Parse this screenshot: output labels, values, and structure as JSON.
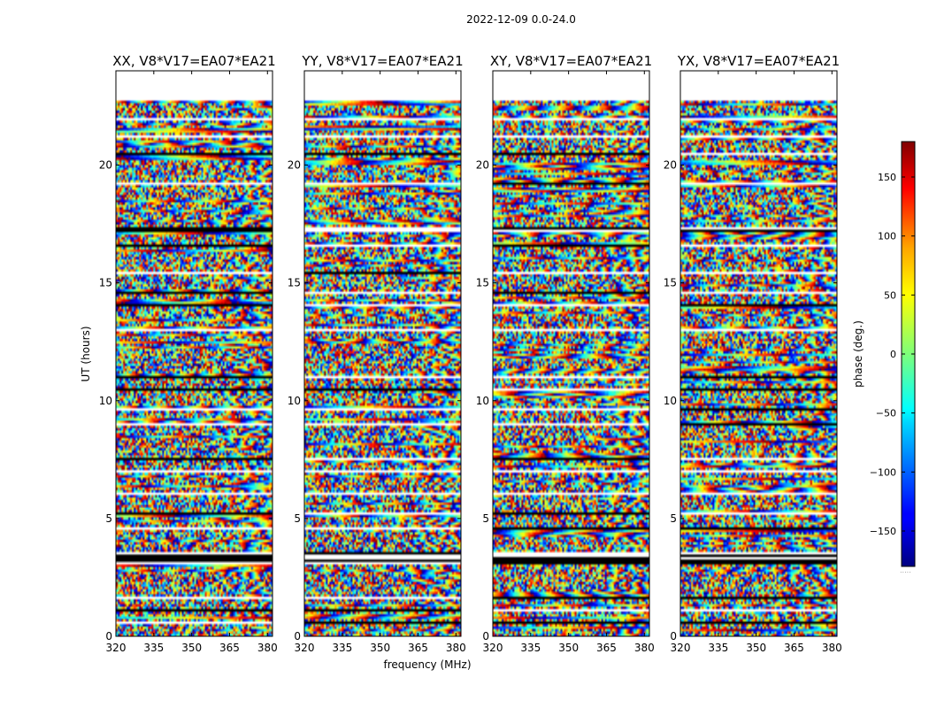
{
  "chart_data": {
    "type": "heatmap",
    "suptitle": "2022-12-09 0.0-24.0",
    "xlabel": "frequency (MHz)",
    "ylabel": "UT (hours)",
    "xlim": [
      320,
      382
    ],
    "ylim": [
      0,
      24
    ],
    "xticks": [
      "320",
      "335",
      "350",
      "365",
      "380"
    ],
    "xtick_values": [
      320,
      335,
      350,
      365,
      380
    ],
    "yticks": [
      "0",
      "5",
      "10",
      "15",
      "20"
    ],
    "ytick_values": [
      0,
      5,
      10,
      15,
      20
    ],
    "data_time_range_hours": [
      0,
      22.7
    ],
    "panels": [
      {
        "title": "XX, V8*V17=EA07*EA21",
        "pol": "XX"
      },
      {
        "title": "YY, V8*V17=EA07*EA21",
        "pol": "YY"
      },
      {
        "title": "XY, V8*V17=EA07*EA21",
        "pol": "XY"
      },
      {
        "title": "YX, V8*V17=EA07*EA21",
        "pol": "YX"
      }
    ],
    "colorbar": {
      "label": "phase (deg.)",
      "range": [
        -180,
        180
      ],
      "colormap": "jet",
      "ticks": [
        "150",
        "100",
        "50",
        "0",
        "−50",
        "−100",
        "−150"
      ],
      "tick_values": [
        150,
        100,
        50,
        0,
        -50,
        -100,
        -150
      ]
    },
    "flagged_time_gaps_hours": [
      [
        0.55,
        0.62
      ],
      [
        1.05,
        1.12
      ],
      [
        1.58,
        1.66
      ],
      [
        2.18,
        2.24
      ],
      [
        3.1,
        3.55
      ],
      [
        3.95,
        4.02
      ],
      [
        4.55,
        4.62
      ],
      [
        5.2,
        5.28
      ],
      [
        6.05,
        6.12
      ],
      [
        6.9,
        7.0
      ],
      [
        7.5,
        7.58
      ],
      [
        8.95,
        9.02
      ],
      [
        9.6,
        9.66
      ],
      [
        10.45,
        10.55
      ],
      [
        11.0,
        11.08
      ],
      [
        13.0,
        13.1
      ],
      [
        14.05,
        14.1
      ],
      [
        14.5,
        14.65
      ],
      [
        15.4,
        15.5
      ],
      [
        15.95,
        16.05
      ],
      [
        16.55,
        16.62
      ],
      [
        17.2,
        17.35
      ],
      [
        17.95,
        18.02
      ],
      [
        18.6,
        18.68
      ],
      [
        19.2,
        19.3
      ],
      [
        20.4,
        20.55
      ],
      [
        21.2,
        21.28
      ],
      [
        21.9,
        21.98
      ]
    ]
  },
  "footnote": "....."
}
